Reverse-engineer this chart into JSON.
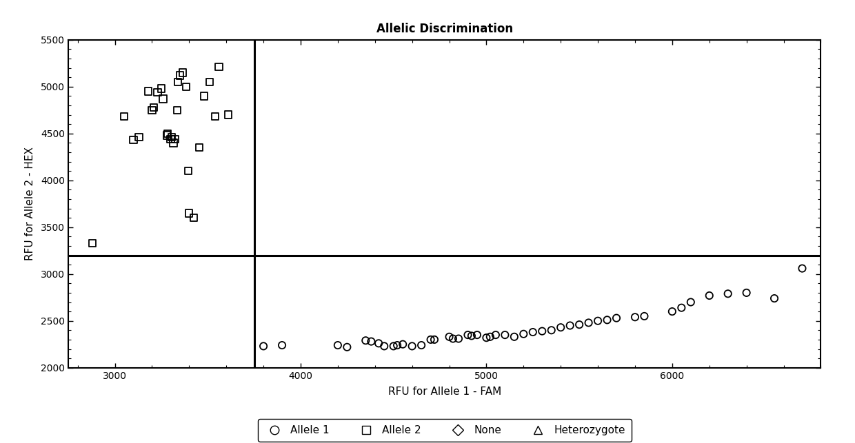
{
  "title": "Allelic Discrimination",
  "xlabel": "RFU for Allele 1 - FAM",
  "ylabel": "RFU for Allele 2 - HEX",
  "xlim": [
    2750,
    6800
  ],
  "ylim": [
    2000,
    5500
  ],
  "xticks": [
    3000,
    4000,
    5000,
    6000
  ],
  "yticks": [
    2000,
    2500,
    3000,
    3500,
    4000,
    4500,
    5000,
    5500
  ],
  "hline_y": 3200,
  "vline_x": 3750,
  "allele1_x": [
    3800,
    3900,
    4200,
    4250,
    4350,
    4380,
    4420,
    4450,
    4500,
    4520,
    4550,
    4600,
    4650,
    4700,
    4720,
    4800,
    4820,
    4850,
    4900,
    4920,
    4950,
    5000,
    5020,
    5050,
    5100,
    5150,
    5200,
    5250,
    5300,
    5350,
    5400,
    5450,
    5500,
    5550,
    5600,
    5650,
    5700,
    5800,
    5850,
    6000,
    6050,
    6100,
    6200,
    6300,
    6400,
    6550,
    6700
  ],
  "allele1_y": [
    2230,
    2240,
    2240,
    2220,
    2290,
    2280,
    2260,
    2230,
    2230,
    2240,
    2250,
    2230,
    2240,
    2300,
    2300,
    2330,
    2310,
    2310,
    2350,
    2340,
    2350,
    2320,
    2330,
    2350,
    2350,
    2330,
    2360,
    2380,
    2390,
    2400,
    2430,
    2450,
    2460,
    2480,
    2500,
    2510,
    2530,
    2540,
    2550,
    2600,
    2640,
    2700,
    2770,
    2790,
    2800,
    2740,
    3060
  ],
  "allele2_x": [
    2880,
    3050,
    3100,
    3130,
    3180,
    3200,
    3210,
    3230,
    3250,
    3260,
    3280,
    3285,
    3300,
    3305,
    3315,
    3325,
    3335,
    3340,
    3350,
    3365,
    3385,
    3395,
    3400,
    3425,
    3455,
    3480,
    3510,
    3540,
    3560,
    3610
  ],
  "allele2_y": [
    3330,
    4680,
    4430,
    4460,
    4950,
    4750,
    4780,
    4940,
    4980,
    4870,
    4480,
    4500,
    4440,
    4460,
    4400,
    4440,
    4750,
    5050,
    5120,
    5150,
    5000,
    4100,
    3650,
    3600,
    4350,
    4900,
    5050,
    4680,
    5210,
    4700
  ],
  "background_color": "#ffffff",
  "marker_color": "#000000",
  "line_color": "#000000",
  "title_fontsize": 12,
  "axis_label_fontsize": 11,
  "tick_fontsize": 10,
  "legend_fontsize": 11
}
